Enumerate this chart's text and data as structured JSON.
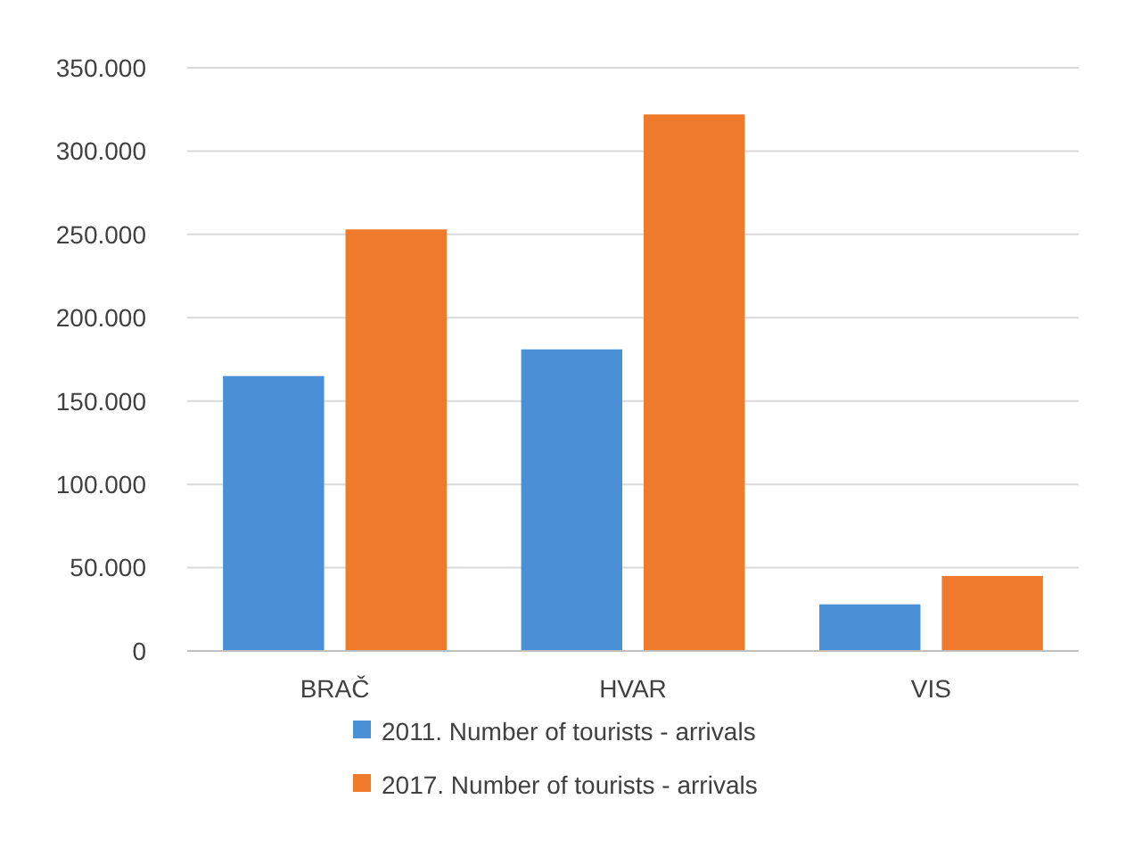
{
  "chart_data": {
    "type": "bar",
    "categories": [
      "BRAČ",
      "HVAR",
      "VIS"
    ],
    "series": [
      {
        "name": "2011. Number of tourists - arrivals",
        "color": "#4a90d6",
        "values": [
          165000,
          181000,
          28000
        ]
      },
      {
        "name": "2017. Number of tourists - arrivals",
        "color": "#f07a2c",
        "values": [
          253000,
          322000,
          45000
        ]
      }
    ],
    "ylim": [
      0,
      350000
    ],
    "yticks": [
      0,
      {
        "value": 50000,
        "label": "50.000"
      },
      {
        "value": 100000,
        "label": "100.000"
      },
      {
        "value": 150000,
        "label": "150.000"
      },
      {
        "value": 200000,
        "label": "200.000"
      },
      {
        "value": 250000,
        "label": "250.000"
      },
      {
        "value": 300000,
        "label": "300.000"
      },
      {
        "value": 350000,
        "label": "350.000"
      }
    ],
    "grid": "y",
    "legend": "bottom"
  }
}
